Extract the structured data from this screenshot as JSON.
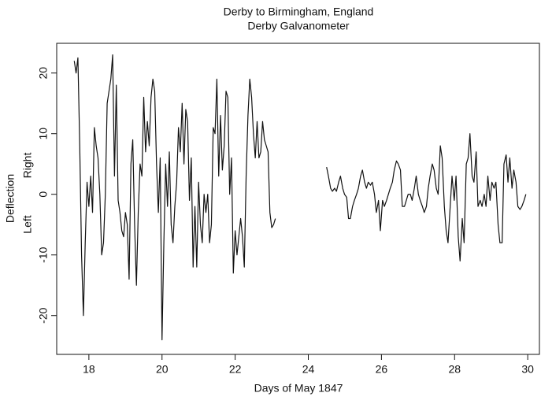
{
  "chart_data": {
    "type": "line",
    "title": "Derby to Birmingham, England",
    "subtitle": "Derby Galvanometer",
    "xlabel": "Days of May 1847",
    "ylabel": "Deflection",
    "annotations": [
      "Right",
      "Left"
    ],
    "xlim": [
      17.12,
      30.32
    ],
    "xticks": [
      18,
      20,
      22,
      24,
      26,
      28,
      30
    ],
    "ylim": [
      -26.4,
      24.9
    ],
    "yticks": [
      -20,
      -10,
      0,
      10,
      20
    ],
    "x": [
      17.6,
      17.65,
      17.7,
      17.75,
      17.8,
      17.85,
      17.9,
      17.95,
      18.0,
      18.05,
      18.1,
      18.15,
      18.2,
      18.25,
      18.3,
      18.35,
      18.4,
      18.45,
      18.5,
      18.55,
      18.6,
      18.65,
      18.7,
      18.75,
      18.8,
      18.85,
      18.9,
      18.95,
      19.0,
      19.05,
      19.1,
      19.15,
      19.2,
      19.25,
      19.3,
      19.35,
      19.4,
      19.45,
      19.5,
      19.55,
      19.6,
      19.65,
      19.7,
      19.75,
      19.8,
      19.85,
      19.9,
      19.95,
      20.0,
      20.05,
      20.1,
      20.15,
      20.2,
      20.25,
      20.3,
      20.35,
      20.4,
      20.45,
      20.5,
      20.55,
      20.6,
      20.65,
      20.7,
      20.75,
      20.8,
      20.85,
      20.9,
      20.95,
      21.0,
      21.05,
      21.1,
      21.15,
      21.2,
      21.25,
      21.3,
      21.35,
      21.4,
      21.45,
      21.5,
      21.55,
      21.6,
      21.65,
      21.7,
      21.75,
      21.8,
      21.85,
      21.9,
      21.95,
      22.0,
      22.05,
      22.1,
      22.15,
      22.2,
      22.25,
      22.3,
      22.35,
      22.4,
      22.45,
      22.5,
      22.55,
      22.6,
      22.65,
      22.7,
      22.75,
      22.8,
      22.85,
      22.9,
      22.95,
      23.0,
      23.05,
      23.1,
      23.8,
      24.5,
      24.55,
      24.61,
      24.66,
      24.72,
      24.77,
      24.83,
      24.88,
      24.94,
      24.99,
      25.05,
      25.1,
      25.15,
      25.21,
      25.26,
      25.32,
      25.37,
      25.43,
      25.48,
      25.54,
      25.59,
      25.64,
      25.7,
      25.75,
      25.81,
      25.86,
      25.92,
      25.97,
      26.03,
      26.08,
      26.14,
      26.19,
      26.24,
      26.3,
      26.35,
      26.41,
      26.46,
      26.52,
      26.57,
      26.63,
      26.68,
      26.73,
      26.79,
      26.84,
      26.9,
      26.95,
      27.01,
      27.06,
      27.12,
      27.17,
      27.23,
      27.28,
      27.33,
      27.39,
      27.44,
      27.5,
      27.55,
      27.61,
      27.66,
      27.72,
      27.77,
      27.82,
      27.88,
      27.93,
      27.99,
      28.04,
      28.1,
      28.15,
      28.21,
      28.26,
      28.32,
      28.37,
      28.42,
      28.48,
      28.53,
      28.59,
      28.64,
      28.7,
      28.75,
      28.81,
      28.86,
      28.91,
      28.97,
      29.02,
      29.08,
      29.13,
      29.19,
      29.24,
      29.3,
      29.35,
      29.41,
      29.46,
      29.51,
      29.57,
      29.62,
      29.68,
      29.73,
      29.79,
      29.84,
      29.9,
      29.95
    ],
    "series": [
      {
        "color": "#111111",
        "values": [
          22,
          20,
          22.5,
          8,
          -10,
          -20,
          -8,
          2,
          -2,
          3,
          -3,
          11,
          8,
          6,
          0,
          -10,
          -8,
          0,
          15,
          17,
          19,
          23,
          3,
          18,
          -1,
          -3,
          -6,
          -7,
          -3,
          -5,
          -14,
          5,
          9,
          -5,
          -15,
          -3,
          5,
          3,
          16,
          7,
          12,
          8,
          16,
          19,
          17,
          5,
          -3,
          6,
          -24,
          -8,
          5,
          -2,
          7,
          -5,
          -8,
          -2,
          2,
          11,
          7,
          15,
          5,
          14,
          12,
          -1,
          6,
          -12,
          -2,
          -12,
          2,
          -5,
          -8,
          0,
          -3,
          0,
          -8,
          -5,
          11,
          10,
          19,
          3,
          13,
          4,
          8,
          17,
          16,
          0,
          6,
          -13,
          -6,
          -10,
          -7,
          -4,
          -7,
          -12,
          3,
          13,
          19,
          16,
          10,
          6,
          12,
          6,
          7,
          12,
          9,
          8,
          7,
          -3,
          -5.5,
          -5,
          -4,
          null,
          4.5,
          3,
          1,
          0.5,
          1,
          0.5,
          2,
          3,
          1,
          0,
          -0.5,
          -4,
          -4,
          -2,
          -1,
          0,
          1,
          3,
          4,
          2,
          1,
          2,
          1.5,
          2,
          0,
          -3,
          -1,
          -6,
          -1,
          -2,
          -1,
          0,
          1,
          2,
          4,
          5.5,
          5,
          4,
          -2,
          -2,
          -1,
          0,
          0,
          -1,
          1,
          3,
          0,
          -1,
          -2,
          -3,
          -2,
          1,
          3,
          5,
          4,
          1,
          0,
          8,
          6,
          -2,
          -6,
          -8,
          -2,
          3,
          -1,
          3,
          -7,
          -11,
          -4,
          -8,
          5,
          6,
          10,
          3,
          2,
          7,
          -2,
          -1,
          -2,
          0,
          -2,
          3,
          -1,
          2,
          1,
          2,
          -5,
          -8,
          -8,
          5,
          6.5,
          2,
          6,
          1,
          4,
          2,
          -2,
          -2.5,
          -2,
          -1,
          0
        ]
      }
    ]
  }
}
